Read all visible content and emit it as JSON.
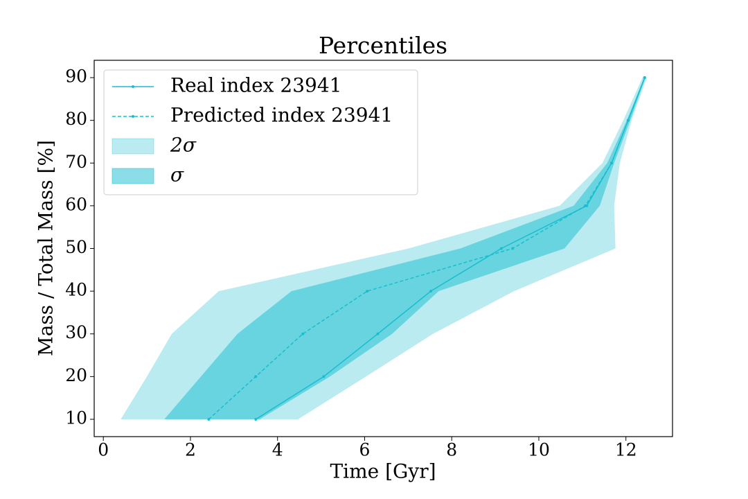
{
  "chart_data": {
    "type": "line",
    "title": "Percentiles",
    "x_label": "Time [Gyr]",
    "y_label": "Mass / Total Mass [%]",
    "xlim": [
      -0.21,
      13.07
    ],
    "ylim": [
      5.94,
      94.06
    ],
    "xticks": [
      0,
      2,
      4,
      6,
      8,
      10,
      12
    ],
    "yticks": [
      10,
      20,
      30,
      40,
      50,
      60,
      70,
      80,
      90
    ],
    "legend": "upper left",
    "y": [
      10,
      20,
      30,
      40,
      50,
      60,
      70,
      80,
      90
    ],
    "bands": [
      {
        "name": "2σ",
        "color": "#17becf",
        "alpha": 0.3,
        "lower": [
          0.4,
          1.0,
          1.57,
          2.65,
          7.01,
          10.48,
          11.46,
          11.94,
          12.38
        ],
        "upper": [
          4.47,
          6.03,
          7.57,
          9.43,
          11.76,
          11.73,
          11.86,
          12.13,
          12.48
        ]
      },
      {
        "name": "σ",
        "color": "#17becf",
        "alpha": 0.5,
        "lower": [
          1.4,
          2.24,
          3.08,
          4.32,
          8.2,
          10.8,
          11.57,
          12.02,
          12.42
        ],
        "upper": [
          3.59,
          5.2,
          6.63,
          7.7,
          10.59,
          11.4,
          11.73,
          12.1,
          12.45
        ]
      }
    ],
    "series": [
      {
        "name": "Real index 23941",
        "color": "#17becf",
        "dash": "solid",
        "x": [
          3.5,
          5.06,
          6.3,
          7.52,
          9.14,
          11.1,
          11.67,
          12.05,
          12.43
        ]
      },
      {
        "name": "Predicted index 23941",
        "color": "#17becf",
        "dash": "dashed",
        "x": [
          2.42,
          3.5,
          4.58,
          6.06,
          9.4,
          11.07,
          11.67,
          12.05,
          12.43
        ]
      }
    ]
  }
}
